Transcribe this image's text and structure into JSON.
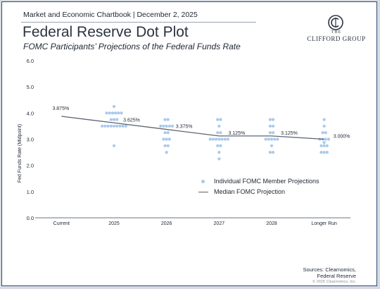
{
  "header": {
    "chartbook": "Market and Economic Chartbook | December 2, 2025",
    "title": "Federal Reserve Dot Plot",
    "subtitle": "FOMC Participants’ Projections of the Federal Funds Rate"
  },
  "logo": {
    "the": "THE",
    "name": "CLIFFORD GROUP",
    "color": "#2b3440"
  },
  "legend": {
    "dots": "Individual FOMC Member Projections",
    "line": "Median FOMC Projection"
  },
  "footer": {
    "sources_line1": "Sources: Clearnomics,",
    "sources_line2": "Federal Reserve",
    "copyright": "© 2025 Clearnomics, Inc."
  },
  "colors": {
    "dots": "#a9c9ec",
    "median": "#5c6470",
    "axis": "#6b7480",
    "text": "#1d2633"
  },
  "chart_data": {
    "type": "scatter",
    "ylabel": "Fed Funds Rate (Midpoint)",
    "ylim": [
      0,
      6
    ],
    "yticks": [
      "0.0",
      "1.0",
      "2.0",
      "3.0",
      "4.0",
      "5.0",
      "6.0"
    ],
    "categories": [
      "Current",
      "2025",
      "2026",
      "2027",
      "2028",
      "Longer Run"
    ],
    "median": {
      "values": [
        3.875,
        3.625,
        3.375,
        3.125,
        3.125,
        3.0
      ],
      "labels": [
        "3.875%",
        "3.625%",
        "3.375%",
        "3.125%",
        "3.125%",
        "3.000%"
      ]
    },
    "dots": [
      [],
      [
        2.75,
        3.5,
        3.5,
        3.5,
        3.5,
        3.5,
        3.5,
        3.5,
        3.5,
        3.5,
        3.75,
        3.75,
        3.75,
        4.0,
        4.0,
        4.0,
        4.0,
        4.0,
        4.0,
        4.25
      ],
      [
        2.5,
        2.75,
        2.75,
        3.0,
        3.0,
        3.0,
        3.25,
        3.25,
        3.5,
        3.5,
        3.5,
        3.5,
        3.5,
        3.75,
        3.75
      ],
      [
        2.25,
        2.5,
        2.75,
        2.75,
        3.0,
        3.0,
        3.0,
        3.0,
        3.0,
        3.0,
        3.0,
        3.25,
        3.25,
        3.5,
        3.75,
        3.75
      ],
      [
        2.5,
        2.5,
        2.75,
        3.0,
        3.0,
        3.0,
        3.0,
        3.0,
        3.25,
        3.25,
        3.5,
        3.5,
        3.75,
        3.75
      ],
      [
        2.5,
        2.5,
        2.5,
        2.75,
        2.75,
        2.75,
        2.875,
        3.0,
        3.0,
        3.0,
        3.0,
        3.25,
        3.25,
        3.5,
        3.75
      ]
    ]
  }
}
